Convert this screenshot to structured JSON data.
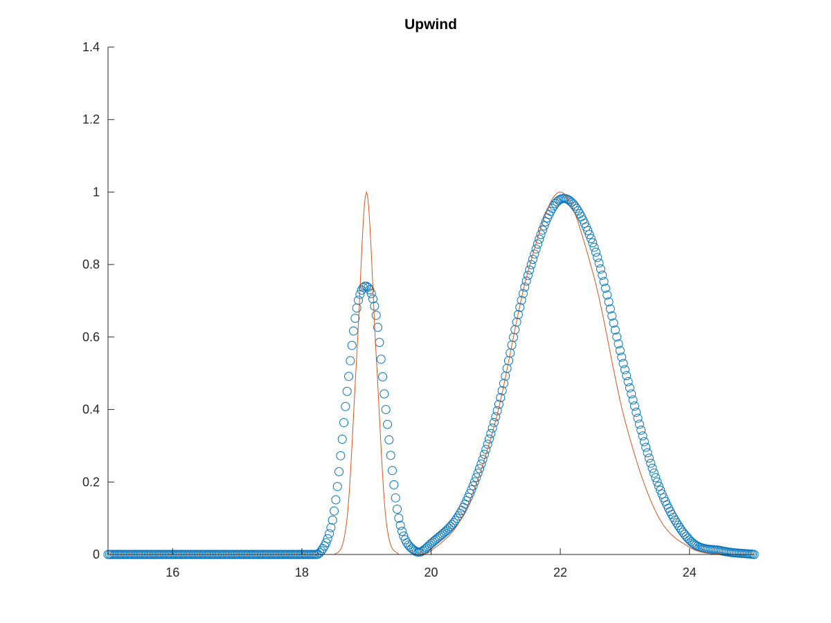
{
  "chart_data": {
    "type": "scatter",
    "title": "Upwind",
    "xlabel": "",
    "ylabel": "",
    "xlim": [
      15,
      25
    ],
    "ylim": [
      0,
      1.4
    ],
    "grid": false,
    "x_ticks": [
      "16",
      "18",
      "20",
      "22",
      "24"
    ],
    "y_ticks": [
      "0",
      "0.2",
      "0.4",
      "0.6",
      "0.8",
      "1",
      "1.2",
      "1.4"
    ],
    "series": [
      {
        "style": "circle markers",
        "color": "#0072BD",
        "description_points": {
          "x": [
            15.0,
            16.0,
            17.0,
            18.0,
            18.3,
            18.5,
            18.7,
            18.85,
            19.0,
            19.15,
            19.3,
            19.5,
            19.75,
            20.0,
            20.5,
            21.0,
            21.5,
            22.0,
            22.5,
            23.0,
            23.5,
            24.0,
            24.5,
            25.0
          ],
          "y": [
            0.0,
            0.0,
            0.0,
            0.0,
            0.01,
            0.12,
            0.45,
            0.68,
            0.74,
            0.66,
            0.4,
            0.1,
            0.01,
            0.03,
            0.13,
            0.38,
            0.77,
            0.98,
            0.86,
            0.51,
            0.2,
            0.04,
            0.01,
            0.0
          ]
        }
      },
      {
        "style": "line",
        "color": "#D95319",
        "description_points": {
          "x": [
            15.0,
            16.0,
            17.0,
            18.0,
            18.5,
            18.7,
            18.85,
            19.0,
            19.15,
            19.3,
            19.5,
            19.75,
            20.0,
            20.5,
            21.0,
            21.5,
            22.0,
            22.5,
            23.0,
            23.5,
            24.0,
            24.5,
            25.0
          ],
          "y": [
            0.0,
            0.0,
            0.0,
            0.0,
            0.0,
            0.1,
            0.55,
            1.0,
            0.55,
            0.1,
            0.0,
            0.0,
            0.01,
            0.11,
            0.37,
            0.78,
            1.0,
            0.78,
            0.37,
            0.11,
            0.02,
            0.0,
            0.0
          ]
        }
      }
    ]
  }
}
